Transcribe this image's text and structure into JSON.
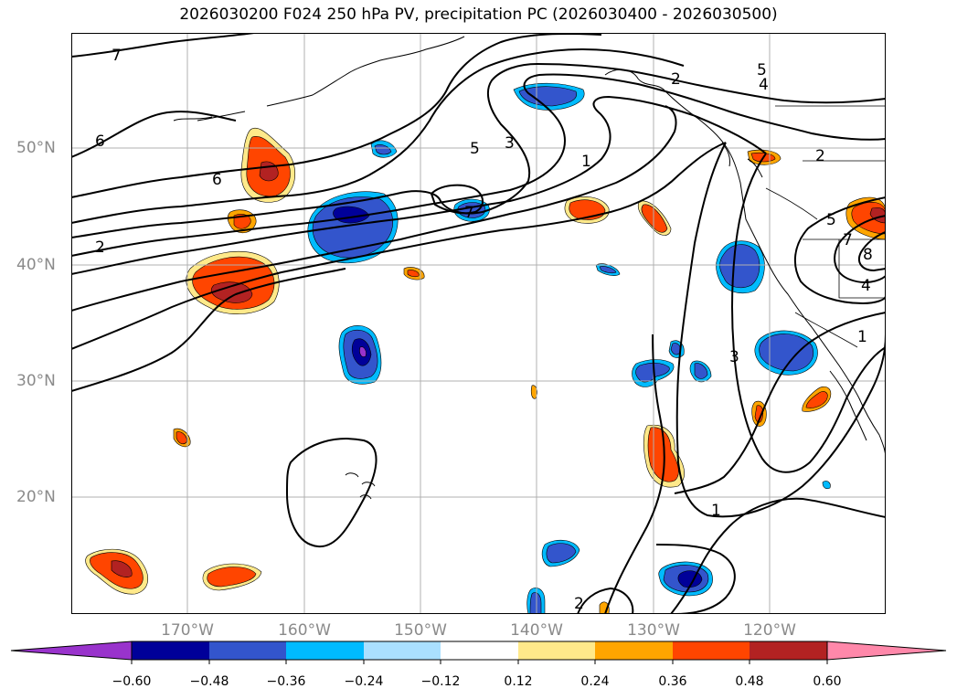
{
  "title": "2026030200 F024 250 hPa PV, precipitation PC (2026030400 - 2026030500)",
  "map": {
    "lat_labels": [
      "50°N",
      "40°N",
      "30°N",
      "20°N"
    ],
    "lon_labels": [
      "170°W",
      "160°W",
      "150°W",
      "140°W",
      "130°W",
      "120°W"
    ],
    "contour_labels": [
      "7",
      "6",
      "6",
      "2",
      "5",
      "3",
      "1",
      "7",
      "2",
      "5",
      "4",
      "2",
      "5",
      "7",
      "8",
      "4",
      "1",
      "3",
      "1",
      "2"
    ]
  },
  "colorbar": {
    "colors": [
      "#9933cc",
      "#000099",
      "#3355cc",
      "#00bbff",
      "#aae0ff",
      "#ffffff",
      "#ffe98a",
      "#ffa500",
      "#ff4500",
      "#b22222",
      "#ff88aa"
    ],
    "tick_labels": [
      "−0.60",
      "−0.48",
      "−0.36",
      "−0.24",
      "−0.12",
      "0.12",
      "0.24",
      "0.36",
      "0.48",
      "0.60"
    ]
  }
}
